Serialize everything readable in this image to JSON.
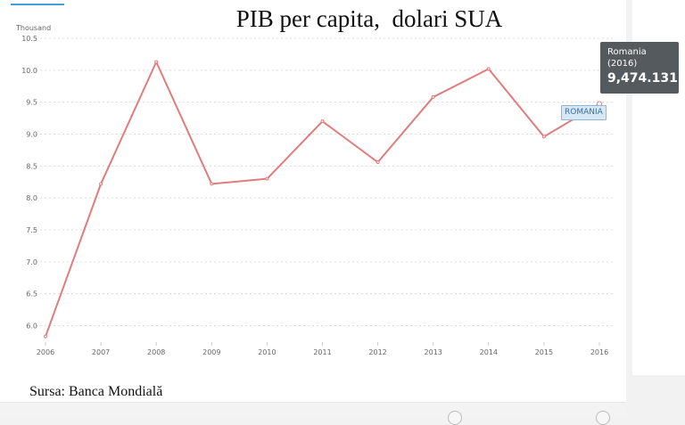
{
  "title": "PIB per capita,  dolari SUA",
  "source": "Sursa: Banca Mondială",
  "tooltip": {
    "country": "Romania",
    "year": "(2016)",
    "value": "9,474.131"
  },
  "series_label": "ROMANIA",
  "colors": {
    "line": "#e07c7c",
    "tooltip_bg": "#555a5f",
    "label_bg": "#d6e8f5",
    "accent": "#4c9ad6"
  },
  "chart_data": {
    "type": "line",
    "title": "PIB per capita,  dolari SUA",
    "xlabel": "",
    "ylabel": "Thousand",
    "x": [
      "2006",
      "2007",
      "2008",
      "2009",
      "2010",
      "2011",
      "2012",
      "2013",
      "2014",
      "2015",
      "2016"
    ],
    "yticks": [
      "6.0",
      "6.5",
      "7.0",
      "7.5",
      "8.0",
      "8.5",
      "9.0",
      "9.5",
      "10.0",
      "10.5"
    ],
    "ylim": [
      5.7,
      10.5
    ],
    "grid": true,
    "series": [
      {
        "name": "ROMANIA",
        "values": [
          5.83,
          8.22,
          10.13,
          8.22,
          8.3,
          9.2,
          8.56,
          9.58,
          10.02,
          8.96,
          9.474
        ]
      }
    ]
  }
}
